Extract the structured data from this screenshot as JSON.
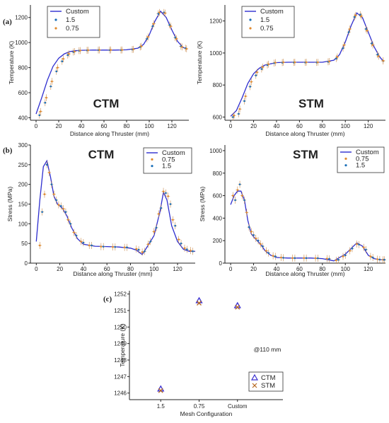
{
  "panel_labels": {
    "a": "(a)",
    "b": "(b)",
    "c": "(c)"
  },
  "colors": {
    "custom": "#2d2dcf",
    "mesh_15": "#1a6fb8",
    "mesh_075": "#e08a2e",
    "err": "#c8894a",
    "ctm_marker": "#3a2fd0",
    "stm_marker": "#b5651d"
  },
  "chart_data": [
    {
      "id": "temp-ctm",
      "type": "line",
      "xlabel": "Distance along Thruster (mm)",
      "ylabel": "Temperature (K)",
      "annotation": "CTM",
      "xlim": [
        -5,
        135
      ],
      "ylim": [
        380,
        1300
      ],
      "xticks": [
        0,
        20,
        40,
        60,
        80,
        100,
        120
      ],
      "yticks": [
        400,
        600,
        800,
        1000,
        1200
      ],
      "legend": [
        "Custom",
        "1.5",
        "0.75"
      ],
      "series": [
        {
          "name": "Custom",
          "x": [
            0,
            5,
            10,
            15,
            20,
            25,
            30,
            35,
            40,
            50,
            60,
            70,
            80,
            90,
            95,
            100,
            105,
            110,
            115,
            120,
            125,
            130,
            133
          ],
          "values": [
            430,
            560,
            700,
            810,
            875,
            910,
            928,
            935,
            938,
            940,
            940,
            940,
            942,
            955,
            985,
            1060,
            1170,
            1250,
            1200,
            1100,
            1010,
            960,
            950
          ]
        },
        {
          "name": "1.5",
          "x": [
            3,
            8,
            13,
            18,
            23,
            28,
            33,
            38,
            45,
            55,
            65,
            75,
            85,
            92,
            98,
            103,
            108,
            113,
            118,
            123,
            128,
            132
          ],
          "values": [
            420,
            520,
            650,
            770,
            850,
            900,
            925,
            935,
            938,
            940,
            940,
            940,
            945,
            965,
            1030,
            1130,
            1230,
            1240,
            1140,
            1040,
            970,
            955
          ]
        },
        {
          "name": "0.75",
          "x": [
            4,
            9,
            14,
            19,
            24,
            29,
            34,
            39,
            46,
            56,
            66,
            76,
            86,
            93,
            99,
            104,
            109,
            114,
            119,
            124,
            129,
            133
          ],
          "values": [
            450,
            560,
            690,
            800,
            870,
            910,
            928,
            936,
            939,
            941,
            941,
            941,
            946,
            970,
            1045,
            1150,
            1240,
            1235,
            1130,
            1030,
            965,
            950
          ]
        }
      ]
    },
    {
      "id": "temp-stm",
      "type": "line",
      "xlabel": "Distance along Thruster (mm)",
      "ylabel": "Temperature (K)",
      "annotation": "STM",
      "xlim": [
        -5,
        135
      ],
      "ylim": [
        580,
        1300
      ],
      "xticks": [
        0,
        20,
        40,
        60,
        80,
        100,
        120
      ],
      "yticks": [
        600,
        800,
        1000,
        1200
      ],
      "legend": [
        "Custom",
        "1.5",
        "0.75"
      ],
      "series": [
        {
          "name": "Custom",
          "x": [
            0,
            5,
            10,
            15,
            20,
            25,
            30,
            40,
            50,
            60,
            70,
            80,
            90,
            95,
            100,
            105,
            110,
            115,
            120,
            125,
            130,
            133
          ],
          "values": [
            605,
            640,
            720,
            810,
            870,
            905,
            925,
            940,
            942,
            942,
            942,
            942,
            955,
            990,
            1070,
            1170,
            1250,
            1220,
            1130,
            1040,
            975,
            950
          ]
        },
        {
          "name": "1.5",
          "x": [
            2,
            7,
            12,
            17,
            22,
            27,
            32,
            38,
            45,
            55,
            65,
            75,
            85,
            92,
            98,
            103,
            108,
            113,
            118,
            123,
            128,
            133
          ],
          "values": [
            600,
            620,
            700,
            790,
            860,
            900,
            925,
            937,
            940,
            941,
            941,
            941,
            945,
            965,
            1030,
            1130,
            1225,
            1240,
            1150,
            1060,
            990,
            950
          ]
        },
        {
          "name": "0.75",
          "x": [
            3,
            8,
            13,
            18,
            23,
            28,
            33,
            39,
            46,
            56,
            66,
            76,
            86,
            93,
            99,
            104,
            109,
            114,
            119,
            124,
            129,
            133
          ],
          "values": [
            610,
            650,
            730,
            820,
            880,
            912,
            930,
            940,
            942,
            942,
            942,
            942,
            947,
            975,
            1050,
            1150,
            1235,
            1230,
            1140,
            1050,
            980,
            952
          ]
        }
      ]
    },
    {
      "id": "stress-ctm",
      "type": "line",
      "xlabel": "Distance along Thruster (mm)",
      "ylabel": "Stress (MPa)",
      "annotation": "CTM",
      "xlim": [
        -5,
        135
      ],
      "ylim": [
        0,
        300
      ],
      "xticks": [
        0,
        20,
        40,
        60,
        80,
        100,
        120
      ],
      "yticks": [
        0,
        50,
        100,
        150,
        200,
        250,
        300
      ],
      "legend": [
        "Custom",
        "0.75",
        "1.5"
      ],
      "series": [
        {
          "name": "Custom",
          "x": [
            0,
            3,
            6,
            9,
            12,
            15,
            18,
            22,
            26,
            30,
            35,
            40,
            50,
            60,
            70,
            80,
            85,
            90,
            95,
            100,
            105,
            108,
            111,
            115,
            120,
            125,
            130,
            135
          ],
          "values": [
            55,
            160,
            245,
            260,
            220,
            170,
            150,
            140,
            120,
            90,
            62,
            48,
            43,
            42,
            41,
            38,
            33,
            22,
            45,
            70,
            130,
            180,
            160,
            95,
            55,
            35,
            30,
            30
          ]
        },
        {
          "name": "0.75",
          "x": [
            3,
            7,
            11,
            15,
            19,
            23,
            27,
            32,
            38,
            45,
            55,
            65,
            75,
            85,
            90,
            95,
            100,
            104,
            108,
            112,
            116,
            121,
            126,
            131
          ],
          "values": [
            45,
            175,
            230,
            175,
            148,
            138,
            110,
            78,
            55,
            45,
            42,
            41,
            40,
            36,
            28,
            48,
            80,
            125,
            182,
            170,
            110,
            60,
            38,
            32
          ]
        },
        {
          "name": "1.5",
          "x": [
            5,
            9,
            13,
            17,
            21,
            25,
            29,
            34,
            40,
            47,
            57,
            67,
            77,
            87,
            92,
            97,
            102,
            106,
            110,
            114,
            118,
            123,
            128,
            133
          ],
          "values": [
            130,
            250,
            200,
            160,
            145,
            130,
            100,
            70,
            52,
            45,
            42,
            41,
            40,
            34,
            30,
            55,
            90,
            140,
            178,
            150,
            95,
            50,
            35,
            30
          ]
        }
      ]
    },
    {
      "id": "stress-stm",
      "type": "line",
      "xlabel": "Distance along Thruster (mm)",
      "ylabel": "Stress (MPa)",
      "annotation": "STM",
      "xlim": [
        -5,
        135
      ],
      "ylim": [
        0,
        1050
      ],
      "xticks": [
        0,
        20,
        40,
        60,
        80,
        100,
        120
      ],
      "yticks": [
        0,
        200,
        400,
        600,
        800,
        1000
      ],
      "legend": [
        "Custom",
        "0.75",
        "1.5"
      ],
      "series": [
        {
          "name": "Custom",
          "x": [
            0,
            3,
            6,
            9,
            12,
            15,
            18,
            22,
            26,
            30,
            35,
            40,
            50,
            60,
            70,
            80,
            90,
            95,
            100,
            105,
            110,
            115,
            120,
            125,
            130,
            135
          ],
          "values": [
            520,
            600,
            640,
            640,
            560,
            380,
            260,
            210,
            170,
            110,
            70,
            50,
            45,
            45,
            45,
            40,
            20,
            50,
            80,
            130,
            180,
            150,
            70,
            40,
            30,
            30
          ]
        },
        {
          "name": "0.75",
          "x": [
            2,
            6,
            10,
            14,
            18,
            22,
            26,
            31,
            37,
            44,
            54,
            64,
            74,
            84,
            92,
            98,
            104,
            110,
            116,
            122,
            128,
            133
          ],
          "values": [
            600,
            650,
            600,
            450,
            280,
            220,
            170,
            110,
            65,
            50,
            45,
            45,
            44,
            40,
            25,
            60,
            110,
            170,
            140,
            60,
            35,
            30
          ]
        },
        {
          "name": "1.5",
          "x": [
            4,
            8,
            12,
            16,
            20,
            24,
            28,
            33,
            39,
            46,
            56,
            66,
            76,
            86,
            94,
            100,
            106,
            112,
            118,
            124,
            130,
            134
          ],
          "values": [
            560,
            700,
            560,
            320,
            250,
            200,
            150,
            90,
            60,
            48,
            45,
            45,
            44,
            38,
            30,
            70,
            130,
            165,
            120,
            50,
            32,
            30
          ]
        }
      ]
    },
    {
      "id": "temp-110",
      "type": "scatter",
      "xlabel": "Mesh Configuration",
      "ylabel": "Temperature (K)",
      "annotation": "@110 mm",
      "categories": [
        "1.5",
        "0.75",
        "Custom"
      ],
      "ylim": [
        1245.6,
        1252.2
      ],
      "yticks": [
        1246,
        1247,
        1248,
        1249,
        1250,
        1251,
        1252
      ],
      "legend": [
        "CTM",
        "STM"
      ],
      "series": [
        {
          "name": "CTM",
          "values": [
            1246.25,
            1251.6,
            1251.3
          ]
        },
        {
          "name": "STM",
          "values": [
            1246.15,
            1251.45,
            1251.2
          ]
        }
      ]
    }
  ]
}
